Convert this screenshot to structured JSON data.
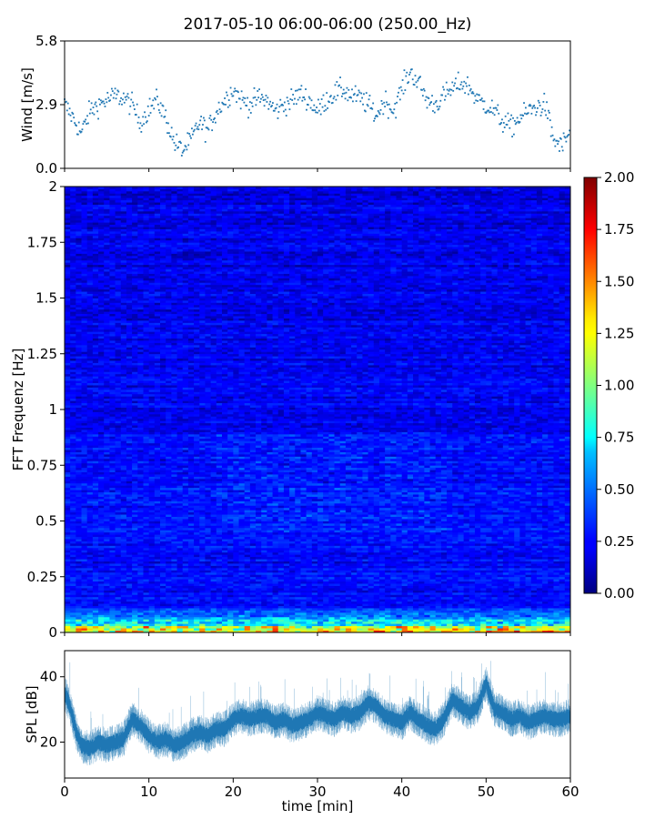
{
  "chart_data": {
    "title": "2017-05-10 06:00-06:00 (250.00_Hz)",
    "panels": [
      {
        "id": "wind",
        "type": "scatter",
        "ylabel": "Wind [m/s]",
        "xlim": [
          0,
          60
        ],
        "ylim": [
          0,
          5.8
        ],
        "yticks": [
          "0.0",
          "2.9",
          "5.8"
        ],
        "color": "#1f77b4",
        "x_step_min": 0.1,
        "level": [
          [
            0,
            2.9
          ],
          [
            1,
            2.3
          ],
          [
            2,
            1.6
          ],
          [
            3,
            2.6
          ],
          [
            4,
            2.9
          ],
          [
            5,
            3.1
          ],
          [
            6,
            3.3
          ],
          [
            7,
            3.2
          ],
          [
            8,
            2.9
          ],
          [
            9,
            2.1
          ],
          [
            10,
            2.7
          ],
          [
            11,
            3.1
          ],
          [
            12,
            2.3
          ],
          [
            13,
            1.2
          ],
          [
            14,
            0.8
          ],
          [
            15,
            1.3
          ],
          [
            16,
            2.1
          ],
          [
            17,
            1.7
          ],
          [
            18,
            2.6
          ],
          [
            19,
            3.1
          ],
          [
            20,
            3.6
          ],
          [
            21,
            3.1
          ],
          [
            22,
            2.9
          ],
          [
            23,
            3.2
          ],
          [
            24,
            3.1
          ],
          [
            25,
            2.6
          ],
          [
            26,
            2.9
          ],
          [
            27,
            3.1
          ],
          [
            28,
            3.4
          ],
          [
            29,
            3.1
          ],
          [
            30,
            2.6
          ],
          [
            31,
            3.1
          ],
          [
            32,
            3.4
          ],
          [
            33,
            3.6
          ],
          [
            34,
            3.3
          ],
          [
            35,
            3.2
          ],
          [
            36,
            2.9
          ],
          [
            37,
            2.4
          ],
          [
            38,
            3.1
          ],
          [
            39,
            2.6
          ],
          [
            40,
            3.6
          ],
          [
            41,
            4.4
          ],
          [
            42,
            3.9
          ],
          [
            43,
            3.1
          ],
          [
            44,
            2.9
          ],
          [
            45,
            3.3
          ],
          [
            46,
            3.6
          ],
          [
            47,
            3.9
          ],
          [
            48,
            3.7
          ],
          [
            49,
            3.1
          ],
          [
            50,
            2.9
          ],
          [
            51,
            2.6
          ],
          [
            52,
            2.1
          ],
          [
            53,
            1.9
          ],
          [
            54,
            2.3
          ],
          [
            55,
            2.6
          ],
          [
            56,
            2.8
          ],
          [
            57,
            2.9
          ],
          [
            58,
            1.3
          ],
          [
            59,
            1.0
          ],
          [
            60,
            1.7
          ]
        ]
      },
      {
        "id": "spectrogram",
        "type": "heatmap",
        "ylabel": "FFT Frequenz [Hz]",
        "xlim": [
          0,
          60
        ],
        "ylim": [
          0,
          2
        ],
        "yticks": [
          "0",
          "0.25",
          "0.5",
          "0.75",
          "1",
          "1.25",
          "1.5",
          "1.75",
          "2"
        ],
        "time_bins": 90,
        "freq_bins": 200,
        "colorbar": {
          "vmin": 0,
          "vmax": 2,
          "ticks": [
            "0.00",
            "0.25",
            "0.50",
            "0.75",
            "1.00",
            "1.25",
            "1.50",
            "1.75",
            "2.00"
          ],
          "colormap": "jet"
        },
        "features": [
          {
            "freq_range": [
              0,
              0.08
            ],
            "amplitude": "0.75-2.00",
            "note": "strong low-frequency band"
          },
          {
            "freq_range": [
              0.5,
              0.85
            ],
            "time_range": [
              18,
              45
            ],
            "amplitude": "0.4-0.7"
          },
          {
            "freq_range": [
              0.1,
              2.0
            ],
            "amplitude": "0.10-0.35"
          }
        ]
      },
      {
        "id": "spl",
        "type": "line",
        "ylabel": "SPL [dB]",
        "xlabel": "time [min]",
        "xlim": [
          0,
          60
        ],
        "ylim": [
          9,
          48
        ],
        "yticks": [
          "20",
          "40"
        ],
        "xticks": [
          "0",
          "10",
          "20",
          "30",
          "40",
          "50",
          "60"
        ],
        "color": "#1f77b4",
        "level": [
          [
            0,
            35
          ],
          [
            0.5,
            32
          ],
          [
            1,
            27
          ],
          [
            1.5,
            22
          ],
          [
            2,
            19
          ],
          [
            3,
            18
          ],
          [
            4,
            20
          ],
          [
            5,
            19
          ],
          [
            6,
            20
          ],
          [
            7,
            21
          ],
          [
            8,
            27
          ],
          [
            9,
            25
          ],
          [
            10,
            22
          ],
          [
            11,
            20
          ],
          [
            12,
            21
          ],
          [
            13,
            19
          ],
          [
            14,
            20
          ],
          [
            15,
            22
          ],
          [
            16,
            23
          ],
          [
            17,
            22
          ],
          [
            18,
            24
          ],
          [
            19,
            24
          ],
          [
            20,
            27
          ],
          [
            21,
            28
          ],
          [
            22,
            27
          ],
          [
            23,
            28
          ],
          [
            24,
            28
          ],
          [
            25,
            26
          ],
          [
            26,
            27
          ],
          [
            27,
            25
          ],
          [
            28,
            26
          ],
          [
            29,
            27
          ],
          [
            30,
            29
          ],
          [
            31,
            28
          ],
          [
            32,
            27
          ],
          [
            33,
            29
          ],
          [
            34,
            28
          ],
          [
            35,
            29
          ],
          [
            36,
            32
          ],
          [
            37,
            31
          ],
          [
            38,
            28
          ],
          [
            39,
            27
          ],
          [
            40,
            26
          ],
          [
            41,
            29
          ],
          [
            42,
            27
          ],
          [
            43,
            25
          ],
          [
            44,
            24
          ],
          [
            45,
            27
          ],
          [
            46,
            33
          ],
          [
            47,
            31
          ],
          [
            48,
            29
          ],
          [
            49,
            31
          ],
          [
            50,
            38
          ],
          [
            51,
            30
          ],
          [
            52,
            29
          ],
          [
            53,
            27
          ],
          [
            54,
            28
          ],
          [
            55,
            26
          ],
          [
            56,
            27
          ],
          [
            57,
            28
          ],
          [
            58,
            27
          ],
          [
            59,
            27
          ],
          [
            60,
            28
          ]
        ]
      }
    ]
  }
}
